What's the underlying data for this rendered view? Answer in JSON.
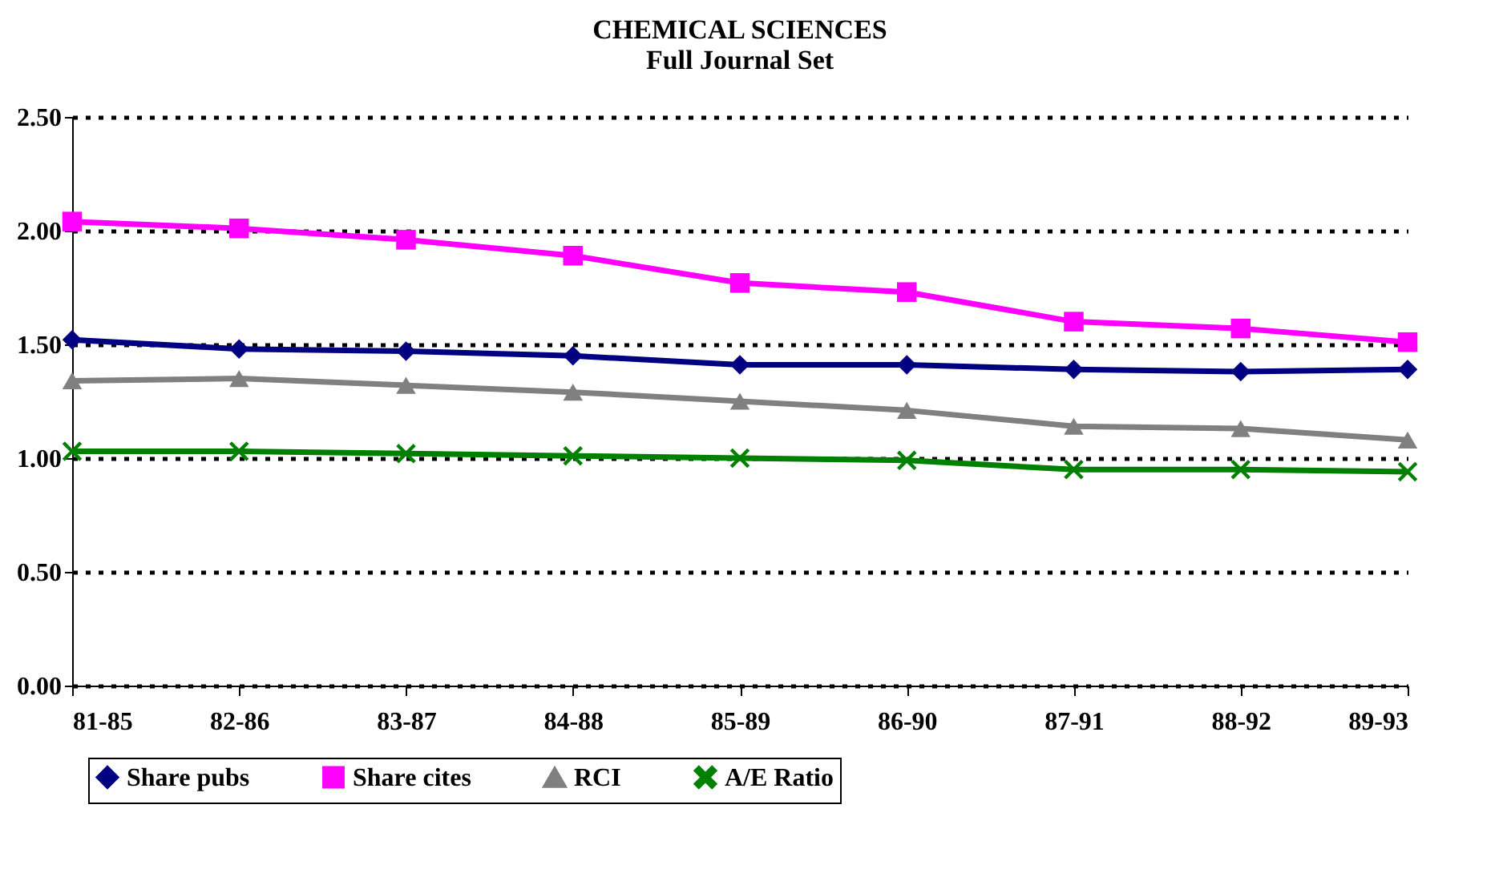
{
  "chart_data": {
    "type": "line",
    "title": "CHEMICAL SCIENCES",
    "subtitle": "Full Journal Set",
    "categories": [
      "81-85",
      "82-86",
      "83-87",
      "84-88",
      "85-89",
      "86-90",
      "87-91",
      "88-92",
      "89-93"
    ],
    "series": [
      {
        "name": "Share pubs",
        "color": "#000080",
        "marker": "diamond",
        "values": [
          1.52,
          1.48,
          1.47,
          1.45,
          1.41,
          1.41,
          1.39,
          1.38,
          1.39
        ]
      },
      {
        "name": "Share cites",
        "color": "#ff00ff",
        "marker": "square",
        "values": [
          2.04,
          2.01,
          1.96,
          1.89,
          1.77,
          1.73,
          1.6,
          1.57,
          1.51
        ]
      },
      {
        "name": "RCI",
        "color": "#808080",
        "marker": "triangle",
        "values": [
          1.34,
          1.35,
          1.32,
          1.29,
          1.25,
          1.21,
          1.14,
          1.13,
          1.08
        ]
      },
      {
        "name": "A/E Ratio",
        "color": "#008000",
        "marker": "cross",
        "values": [
          1.03,
          1.03,
          1.02,
          1.01,
          1.0,
          0.99,
          0.95,
          0.95,
          0.94
        ]
      }
    ],
    "ylim": [
      0,
      2.5
    ],
    "yticks": [
      {
        "value": 0,
        "label": "0.00"
      },
      {
        "value": 0.5,
        "label": "0.50"
      },
      {
        "value": 1,
        "label": "1.00"
      },
      {
        "value": 1.5,
        "label": "1.50"
      },
      {
        "value": 2,
        "label": "2.00"
      },
      {
        "value": 2.5,
        "label": "2.50"
      }
    ],
    "grid": "y",
    "legend": "bottom"
  }
}
